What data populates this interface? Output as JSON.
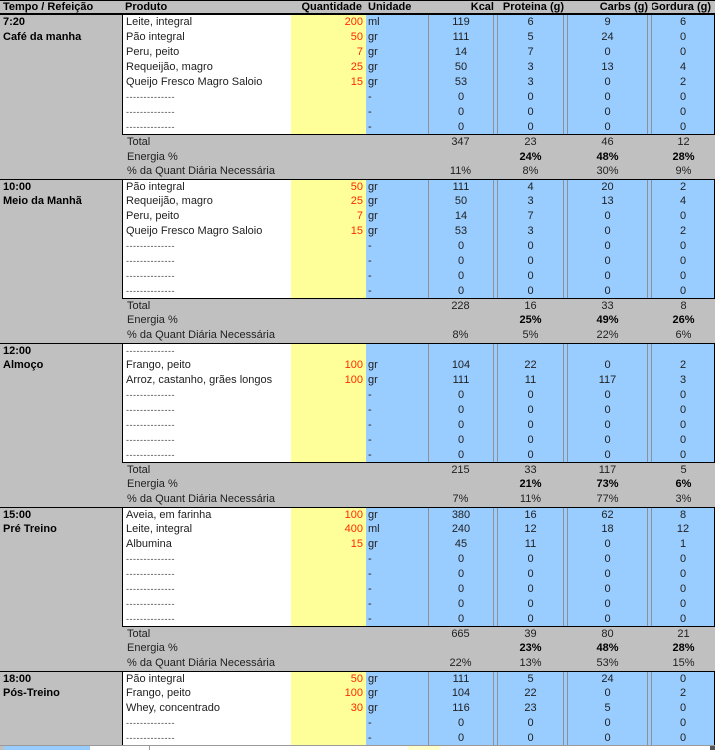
{
  "columns": [
    "Tempo / Refeição",
    "Produto",
    "Quantidade",
    "Unidade",
    "Kcal",
    "Proteina (g)",
    "Carbs (g)",
    "Gordura (g)"
  ],
  "dashes": "--------------",
  "labels": {
    "total": "Total",
    "energia": "Energia %",
    "daily": "% da Quant Diária Necessária"
  },
  "colors": {
    "header_gray": "#c0c0c0",
    "quantity_yellow": "#ffff99",
    "value_blue": "#99ccff",
    "quantity_red": "#ff2a00",
    "grid_line": "#909090"
  },
  "meals": [
    {
      "time": "7:20",
      "name": "Café da manha",
      "items": [
        {
          "produto": "Leite, integral",
          "qtd": "200",
          "un": "ml",
          "kcal": "119",
          "prot": "6",
          "carb": "9",
          "gord": "6"
        },
        {
          "produto": "Pão integral",
          "qtd": "50",
          "un": "gr",
          "kcal": "111",
          "prot": "5",
          "carb": "24",
          "gord": "0"
        },
        {
          "produto": "Peru, peito",
          "qtd": "7",
          "un": "gr",
          "kcal": "14",
          "prot": "7",
          "carb": "0",
          "gord": "0"
        },
        {
          "produto": "Requeijão, magro",
          "qtd": "25",
          "un": "gr",
          "kcal": "50",
          "prot": "3",
          "carb": "13",
          "gord": "4"
        },
        {
          "produto": "Queijo Fresco Magro Saloio",
          "qtd": "15",
          "un": "gr",
          "kcal": "53",
          "prot": "3",
          "carb": "0",
          "gord": "2"
        },
        {
          "dash": true,
          "un": "-",
          "kcal": "0",
          "prot": "0",
          "carb": "0",
          "gord": "0"
        },
        {
          "dash": true,
          "un": "-",
          "kcal": "0",
          "prot": "0",
          "carb": "0",
          "gord": "0"
        },
        {
          "dash": true,
          "un": "-",
          "kcal": "0",
          "prot": "0",
          "carb": "0",
          "gord": "0"
        }
      ],
      "total": {
        "kcal": "347",
        "prot": "23",
        "carb": "46",
        "gord": "12"
      },
      "energia": {
        "prot": "24%",
        "carb": "48%",
        "gord": "28%"
      },
      "daily": {
        "kcal": "11%",
        "prot": "8%",
        "carb": "30%",
        "gord": "9%"
      }
    },
    {
      "time": "10:00",
      "name": "Meio da Manhã",
      "items": [
        {
          "produto": "Pão integral",
          "qtd": "50",
          "un": "gr",
          "kcal": "111",
          "prot": "4",
          "carb": "20",
          "gord": "2"
        },
        {
          "produto": "Requeijão, magro",
          "qtd": "25",
          "un": "gr",
          "kcal": "50",
          "prot": "3",
          "carb": "13",
          "gord": "4"
        },
        {
          "produto": "Peru, peito",
          "qtd": "7",
          "un": "gr",
          "kcal": "14",
          "prot": "7",
          "carb": "0",
          "gord": "0"
        },
        {
          "produto": "Queijo Fresco Magro Saloio",
          "qtd": "15",
          "un": "gr",
          "kcal": "53",
          "prot": "3",
          "carb": "0",
          "gord": "2"
        },
        {
          "dash": true,
          "un": "-",
          "kcal": "0",
          "prot": "0",
          "carb": "0",
          "gord": "0"
        },
        {
          "dash": true,
          "un": "-",
          "kcal": "0",
          "prot": "0",
          "carb": "0",
          "gord": "0"
        },
        {
          "dash": true,
          "un": "-",
          "kcal": "0",
          "prot": "0",
          "carb": "0",
          "gord": "0"
        },
        {
          "dash": true,
          "un": "-",
          "kcal": "0",
          "prot": "0",
          "carb": "0",
          "gord": "0"
        }
      ],
      "total": {
        "kcal": "228",
        "prot": "16",
        "carb": "33",
        "gord": "8"
      },
      "energia": {
        "prot": "25%",
        "carb": "49%",
        "gord": "26%"
      },
      "daily": {
        "kcal": "8%",
        "prot": "5%",
        "carb": "22%",
        "gord": "6%"
      }
    },
    {
      "time": "12:00",
      "name": "Almoço",
      "items": [
        {
          "dash": true
        },
        {
          "produto": "Frango, peito",
          "qtd": "100",
          "un": "gr",
          "kcal": "104",
          "prot": "22",
          "carb": "0",
          "gord": "2"
        },
        {
          "produto": "Arroz, castanho, grães longos",
          "qtd": "100",
          "un": "gr",
          "kcal": "111",
          "prot": "11",
          "carb": "117",
          "gord": "3"
        },
        {
          "dash": true,
          "un": "-",
          "kcal": "0",
          "prot": "0",
          "carb": "0",
          "gord": "0"
        },
        {
          "dash": true,
          "un": "-",
          "kcal": "0",
          "prot": "0",
          "carb": "0",
          "gord": "0"
        },
        {
          "dash": true,
          "un": "-",
          "kcal": "0",
          "prot": "0",
          "carb": "0",
          "gord": "0"
        },
        {
          "dash": true,
          "un": "-",
          "kcal": "0",
          "prot": "0",
          "carb": "0",
          "gord": "0"
        },
        {
          "dash": true,
          "un": "-",
          "kcal": "0",
          "prot": "0",
          "carb": "0",
          "gord": "0"
        }
      ],
      "total": {
        "kcal": "215",
        "prot": "33",
        "carb": "117",
        "gord": "5"
      },
      "energia": {
        "prot": "21%",
        "carb": "73%",
        "gord": "6%"
      },
      "daily": {
        "kcal": "7%",
        "prot": "11%",
        "carb": "77%",
        "gord": "3%"
      }
    },
    {
      "time": "15:00",
      "name": "Pré Treino",
      "items": [
        {
          "produto": "Aveia, em farinha",
          "qtd": "100",
          "un": "gr",
          "kcal": "380",
          "prot": "16",
          "carb": "62",
          "gord": "8"
        },
        {
          "produto": "Leite, integral",
          "qtd": "400",
          "un": "ml",
          "kcal": "240",
          "prot": "12",
          "carb": "18",
          "gord": "12"
        },
        {
          "produto": "Albumina",
          "qtd": "15",
          "un": "gr",
          "kcal": "45",
          "prot": "11",
          "carb": "0",
          "gord": "1"
        },
        {
          "dash": true,
          "un": "-",
          "kcal": "0",
          "prot": "0",
          "carb": "0",
          "gord": "0"
        },
        {
          "dash": true,
          "un": "-",
          "kcal": "0",
          "prot": "0",
          "carb": "0",
          "gord": "0"
        },
        {
          "dash": true,
          "un": "-",
          "kcal": "0",
          "prot": "0",
          "carb": "0",
          "gord": "0"
        },
        {
          "dash": true,
          "un": "-",
          "kcal": "0",
          "prot": "0",
          "carb": "0",
          "gord": "0"
        },
        {
          "dash": true,
          "un": "-",
          "kcal": "0",
          "prot": "0",
          "carb": "0",
          "gord": "0"
        }
      ],
      "total": {
        "kcal": "665",
        "prot": "39",
        "carb": "80",
        "gord": "21"
      },
      "energia": {
        "prot": "23%",
        "carb": "48%",
        "gord": "28%"
      },
      "daily": {
        "kcal": "22%",
        "prot": "13%",
        "carb": "53%",
        "gord": "15%"
      }
    },
    {
      "time": "18:00",
      "name": "Pós-Treino",
      "partial": true,
      "items": [
        {
          "produto": "Pão integral",
          "qtd": "50",
          "un": "gr",
          "kcal": "111",
          "prot": "5",
          "carb": "24",
          "gord": "0"
        },
        {
          "produto": "Frango, peito",
          "qtd": "100",
          "un": "gr",
          "kcal": "104",
          "prot": "22",
          "carb": "0",
          "gord": "2"
        },
        {
          "produto": "Whey, concentrado",
          "qtd": "30",
          "un": "gr",
          "kcal": "116",
          "prot": "23",
          "carb": "5",
          "gord": "0"
        },
        {
          "dash": true,
          "un": "-",
          "kcal": "0",
          "prot": "0",
          "carb": "0",
          "gord": "0"
        },
        {
          "dash": true,
          "un": "-",
          "kcal": "0",
          "prot": "0",
          "carb": "0",
          "gord": "0"
        }
      ]
    }
  ]
}
